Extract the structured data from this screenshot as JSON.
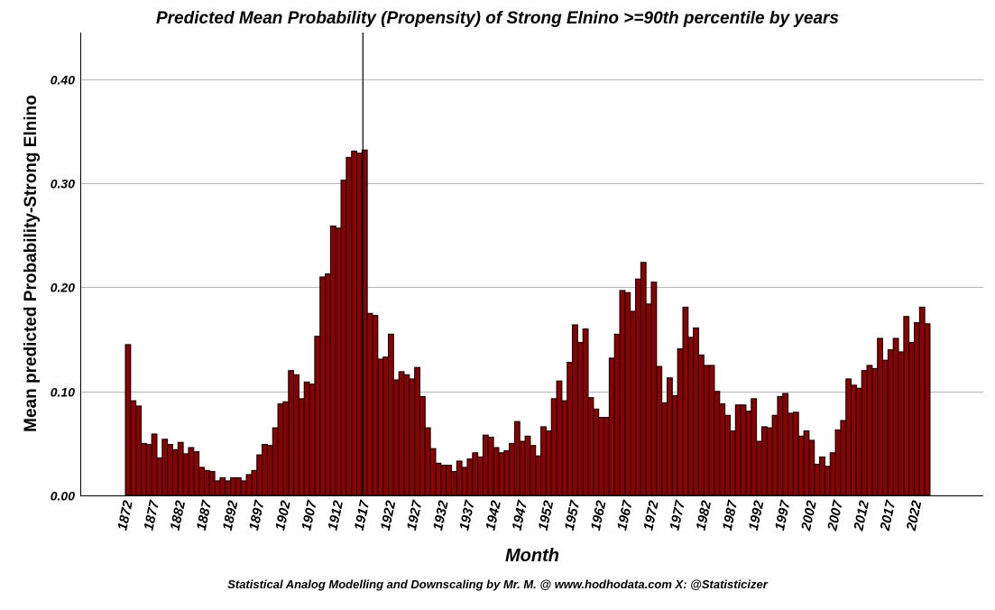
{
  "footer": "Statistical Analog Modelling and Downscaling by Mr. M. @ www.hodhodata.com X: @Statisticizer",
  "chart_data": {
    "type": "bar",
    "title": "Predicted Mean Probability (Propensity) of Strong Elnino >=90th percentile by years",
    "xlabel": "Month",
    "ylabel": "Mean predicted Probability-Strong Elnino",
    "ylim": [
      0,
      0.445
    ],
    "yticks": [
      "0.00",
      "0.10",
      "0.20",
      "0.30",
      "0.40"
    ],
    "grid": "horizontal",
    "bar_color": "#8b0000",
    "reference_line_year": 1917,
    "x_tick_labels": [
      "1872",
      "1877",
      "1882",
      "1887",
      "1892",
      "1897",
      "1902",
      "1907",
      "1912",
      "1917",
      "1922",
      "1927",
      "1932",
      "1937",
      "1942",
      "1947",
      "1952",
      "1957",
      "1962",
      "1967",
      "1972",
      "1977",
      "1982",
      "1987",
      "1992",
      "1997",
      "2002",
      "2007",
      "2012",
      "2017",
      "2022"
    ],
    "start_year": 1872,
    "values": [
      0.145,
      0.091,
      0.086,
      0.05,
      0.049,
      0.059,
      0.036,
      0.054,
      0.049,
      0.044,
      0.051,
      0.04,
      0.046,
      0.042,
      0.027,
      0.024,
      0.023,
      0.014,
      0.017,
      0.014,
      0.017,
      0.017,
      0.014,
      0.02,
      0.024,
      0.039,
      0.049,
      0.048,
      0.065,
      0.088,
      0.09,
      0.12,
      0.116,
      0.093,
      0.109,
      0.107,
      0.153,
      0.21,
      0.213,
      0.259,
      0.257,
      0.303,
      0.325,
      0.331,
      0.329,
      0.332,
      0.175,
      0.173,
      0.131,
      0.133,
      0.155,
      0.111,
      0.119,
      0.116,
      0.112,
      0.123,
      0.095,
      0.065,
      0.045,
      0.031,
      0.029,
      0.029,
      0.023,
      0.033,
      0.027,
      0.035,
      0.041,
      0.037,
      0.058,
      0.056,
      0.046,
      0.041,
      0.043,
      0.05,
      0.071,
      0.052,
      0.057,
      0.048,
      0.038,
      0.066,
      0.062,
      0.093,
      0.11,
      0.091,
      0.128,
      0.164,
      0.147,
      0.16,
      0.094,
      0.083,
      0.075,
      0.075,
      0.132,
      0.155,
      0.197,
      0.195,
      0.177,
      0.208,
      0.224,
      0.184,
      0.205,
      0.124,
      0.089,
      0.113,
      0.096,
      0.141,
      0.181,
      0.152,
      0.161,
      0.135,
      0.125,
      0.125,
      0.1,
      0.088,
      0.077,
      0.062,
      0.087,
      0.087,
      0.081,
      0.093,
      0.052,
      0.066,
      0.065,
      0.077,
      0.095,
      0.098,
      0.079,
      0.08,
      0.057,
      0.062,
      0.053,
      0.03,
      0.037,
      0.028,
      0.041,
      0.063,
      0.072,
      0.112,
      0.106,
      0.103,
      0.12,
      0.125,
      0.122,
      0.151,
      0.13,
      0.14,
      0.151,
      0.138,
      0.172,
      0.147,
      0.166,
      0.181,
      0.165
    ]
  }
}
